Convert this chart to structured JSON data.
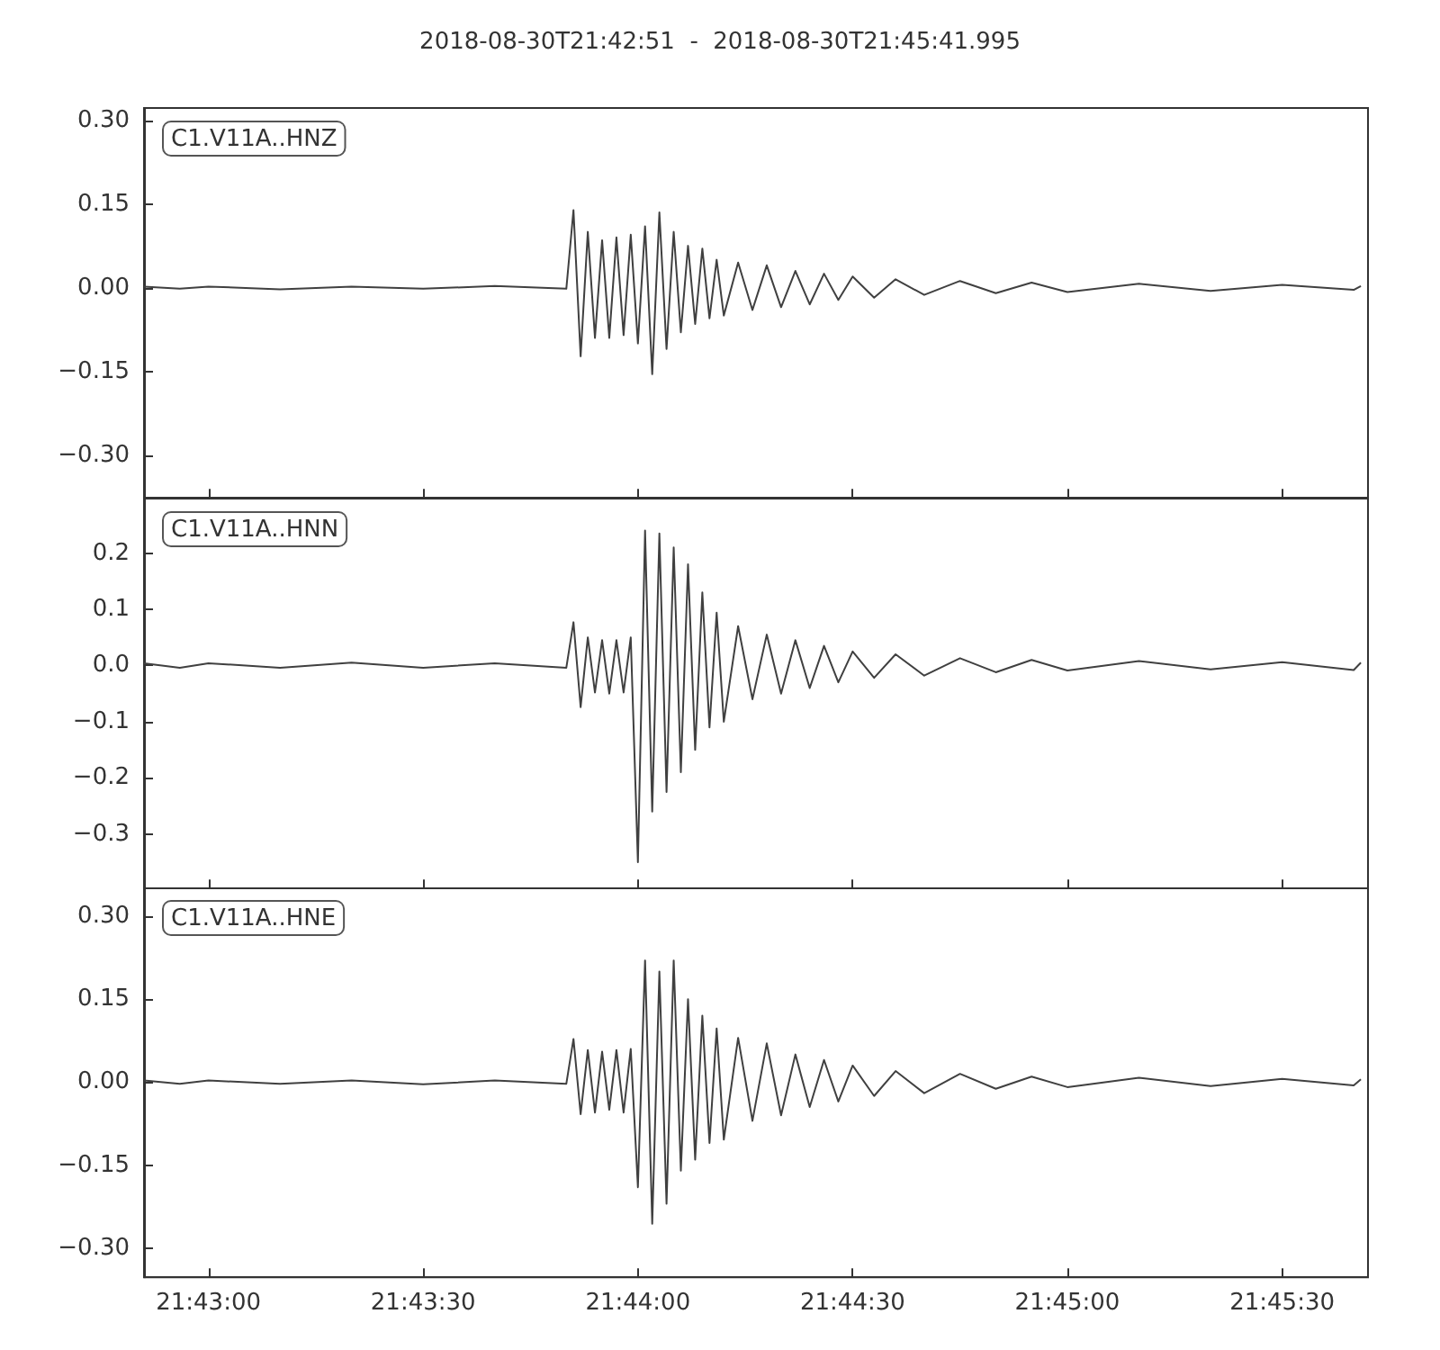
{
  "chart_data": [
    {
      "type": "line",
      "title": "2018-08-30T21:42:51  -  2018-08-30T21:45:41.995",
      "annotations": [
        "C1.V11A..HNZ"
      ],
      "marker": "none",
      "line_style": "solid",
      "grid": false,
      "tick_labels": "y",
      "x": [
        "2018-08-30T21:42:51",
        "2018-08-30T21:42:56",
        "2018-08-30T21:43:00",
        "2018-08-30T21:43:10",
        "2018-08-30T21:43:20",
        "2018-08-30T21:43:30",
        "2018-08-30T21:43:40",
        "2018-08-30T21:43:50",
        "2018-08-30T21:43:51",
        "2018-08-30T21:43:52",
        "2018-08-30T21:43:53",
        "2018-08-30T21:43:54",
        "2018-08-30T21:43:55",
        "2018-08-30T21:43:56",
        "2018-08-30T21:43:57",
        "2018-08-30T21:43:58",
        "2018-08-30T21:43:59",
        "2018-08-30T21:44:00",
        "2018-08-30T21:44:01",
        "2018-08-30T21:44:02",
        "2018-08-30T21:44:03",
        "2018-08-30T21:44:04",
        "2018-08-30T21:44:05",
        "2018-08-30T21:44:06",
        "2018-08-30T21:44:07",
        "2018-08-30T21:44:08",
        "2018-08-30T21:44:09",
        "2018-08-30T21:44:10",
        "2018-08-30T21:44:11",
        "2018-08-30T21:44:12",
        "2018-08-30T21:44:14",
        "2018-08-30T21:44:16",
        "2018-08-30T21:44:18",
        "2018-08-30T21:44:20",
        "2018-08-30T21:44:22",
        "2018-08-30T21:44:24",
        "2018-08-30T21:44:26",
        "2018-08-30T21:44:28",
        "2018-08-30T21:44:30",
        "2018-08-30T21:44:33",
        "2018-08-30T21:44:36",
        "2018-08-30T21:44:40",
        "2018-08-30T21:44:45",
        "2018-08-30T21:44:50",
        "2018-08-30T21:44:55",
        "2018-08-30T21:45:00",
        "2018-08-30T21:45:10",
        "2018-08-30T21:45:20",
        "2018-08-30T21:45:30",
        "2018-08-30T21:45:40",
        "2018-08-30T21:45:41"
      ],
      "series": [
        {
          "color": "#404040",
          "values": [
            0.002,
            -0.002,
            0.002,
            -0.003,
            0.002,
            -0.002,
            0.003,
            -0.002,
            0.139,
            -0.123,
            0.1,
            -0.09,
            0.085,
            -0.09,
            0.09,
            -0.085,
            0.095,
            -0.1,
            0.11,
            -0.155,
            0.135,
            -0.11,
            0.1,
            -0.08,
            0.075,
            -0.065,
            0.07,
            -0.055,
            0.05,
            -0.05,
            0.045,
            -0.04,
            0.04,
            -0.035,
            0.03,
            -0.03,
            0.025,
            -0.022,
            0.02,
            -0.018,
            0.015,
            -0.013,
            0.012,
            -0.01,
            0.009,
            -0.008,
            0.007,
            -0.006,
            0.005,
            -0.004,
            0.003
          ]
        }
      ],
      "xlim": [
        "2018-08-30T21:42:51",
        "2018-08-30T21:45:41.995"
      ],
      "xticks": [
        {
          "value": "2018-08-30T21:43:00",
          "label": null
        },
        {
          "value": "2018-08-30T21:43:30",
          "label": null
        },
        {
          "value": "2018-08-30T21:44:00",
          "label": null
        },
        {
          "value": "2018-08-30T21:44:30",
          "label": null
        },
        {
          "value": "2018-08-30T21:45:00",
          "label": null
        },
        {
          "value": "2018-08-30T21:45:30",
          "label": null
        }
      ],
      "ylim": [
        -0.377,
        0.322
      ],
      "yticks": [
        {
          "value": -0.3,
          "label": "−0.30"
        },
        {
          "value": -0.15,
          "label": "−0.15"
        },
        {
          "value": 0,
          "label": "0.00"
        },
        {
          "value": 0.15,
          "label": "0.15"
        },
        {
          "value": 0.3,
          "label": "0.30"
        }
      ]
    },
    {
      "type": "line",
      "annotations": [
        "C1.V11A..HNN"
      ],
      "marker": "none",
      "line_style": "solid",
      "grid": false,
      "tick_labels": "y",
      "x": [
        "2018-08-30T21:42:51",
        "2018-08-30T21:42:56",
        "2018-08-30T21:43:00",
        "2018-08-30T21:43:10",
        "2018-08-30T21:43:20",
        "2018-08-30T21:43:30",
        "2018-08-30T21:43:40",
        "2018-08-30T21:43:50",
        "2018-08-30T21:43:51",
        "2018-08-30T21:43:52",
        "2018-08-30T21:43:53",
        "2018-08-30T21:43:54",
        "2018-08-30T21:43:55",
        "2018-08-30T21:43:56",
        "2018-08-30T21:43:57",
        "2018-08-30T21:43:58",
        "2018-08-30T21:43:59",
        "2018-08-30T21:44:00",
        "2018-08-30T21:44:01",
        "2018-08-30T21:44:02",
        "2018-08-30T21:44:03",
        "2018-08-30T21:44:04",
        "2018-08-30T21:44:05",
        "2018-08-30T21:44:06",
        "2018-08-30T21:44:07",
        "2018-08-30T21:44:08",
        "2018-08-30T21:44:09",
        "2018-08-30T21:44:10",
        "2018-08-30T21:44:11",
        "2018-08-30T21:44:12",
        "2018-08-30T21:44:14",
        "2018-08-30T21:44:16",
        "2018-08-30T21:44:18",
        "2018-08-30T21:44:20",
        "2018-08-30T21:44:22",
        "2018-08-30T21:44:24",
        "2018-08-30T21:44:26",
        "2018-08-30T21:44:28",
        "2018-08-30T21:44:30",
        "2018-08-30T21:44:33",
        "2018-08-30T21:44:36",
        "2018-08-30T21:44:40",
        "2018-08-30T21:44:45",
        "2018-08-30T21:44:50",
        "2018-08-30T21:44:55",
        "2018-08-30T21:45:00",
        "2018-08-30T21:45:10",
        "2018-08-30T21:45:20",
        "2018-08-30T21:45:30",
        "2018-08-30T21:45:40",
        "2018-08-30T21:45:41"
      ],
      "series": [
        {
          "color": "#404040",
          "values": [
            0.004,
            -0.004,
            0.004,
            -0.004,
            0.005,
            -0.004,
            0.004,
            -0.004,
            0.077,
            -0.074,
            0.05,
            -0.048,
            0.045,
            -0.05,
            0.045,
            -0.048,
            0.05,
            -0.35,
            0.24,
            -0.26,
            0.235,
            -0.225,
            0.21,
            -0.19,
            0.18,
            -0.15,
            0.13,
            -0.11,
            0.094,
            -0.1,
            0.07,
            -0.06,
            0.055,
            -0.05,
            0.045,
            -0.04,
            0.035,
            -0.03,
            0.025,
            -0.022,
            0.02,
            -0.018,
            0.013,
            -0.012,
            0.01,
            -0.009,
            0.008,
            -0.007,
            0.006,
            -0.008,
            0.005
          ]
        }
      ],
      "xlim": [
        "2018-08-30T21:42:51",
        "2018-08-30T21:45:41.995"
      ],
      "xticks": [
        {
          "value": "2018-08-30T21:43:00",
          "label": null
        },
        {
          "value": "2018-08-30T21:43:30",
          "label": null
        },
        {
          "value": "2018-08-30T21:44:00",
          "label": null
        },
        {
          "value": "2018-08-30T21:44:30",
          "label": null
        },
        {
          "value": "2018-08-30T21:45:00",
          "label": null
        },
        {
          "value": "2018-08-30T21:45:30",
          "label": null
        }
      ],
      "ylim": [
        -0.397,
        0.297
      ],
      "yticks": [
        {
          "value": -0.3,
          "label": "−0.3"
        },
        {
          "value": -0.2,
          "label": "−0.2"
        },
        {
          "value": -0.1,
          "label": "−0.1"
        },
        {
          "value": 0,
          "label": "0.0"
        },
        {
          "value": 0.1,
          "label": "0.1"
        },
        {
          "value": 0.2,
          "label": "0.2"
        }
      ]
    },
    {
      "type": "line",
      "annotations": [
        "C1.V11A..HNE"
      ],
      "marker": "none",
      "line_style": "solid",
      "grid": false,
      "x": [
        "2018-08-30T21:42:51",
        "2018-08-30T21:42:56",
        "2018-08-30T21:43:00",
        "2018-08-30T21:43:10",
        "2018-08-30T21:43:20",
        "2018-08-30T21:43:30",
        "2018-08-30T21:43:40",
        "2018-08-30T21:43:50",
        "2018-08-30T21:43:51",
        "2018-08-30T21:43:52",
        "2018-08-30T21:43:53",
        "2018-08-30T21:43:54",
        "2018-08-30T21:43:55",
        "2018-08-30T21:43:56",
        "2018-08-30T21:43:57",
        "2018-08-30T21:43:58",
        "2018-08-30T21:43:59",
        "2018-08-30T21:44:00",
        "2018-08-30T21:44:01",
        "2018-08-30T21:44:02",
        "2018-08-30T21:44:03",
        "2018-08-30T21:44:04",
        "2018-08-30T21:44:05",
        "2018-08-30T21:44:06",
        "2018-08-30T21:44:07",
        "2018-08-30T21:44:08",
        "2018-08-30T21:44:09",
        "2018-08-30T21:44:10",
        "2018-08-30T21:44:11",
        "2018-08-30T21:44:12",
        "2018-08-30T21:44:14",
        "2018-08-30T21:44:16",
        "2018-08-30T21:44:18",
        "2018-08-30T21:44:20",
        "2018-08-30T21:44:22",
        "2018-08-30T21:44:24",
        "2018-08-30T21:44:26",
        "2018-08-30T21:44:28",
        "2018-08-30T21:44:30",
        "2018-08-30T21:44:33",
        "2018-08-30T21:44:36",
        "2018-08-30T21:44:40",
        "2018-08-30T21:44:45",
        "2018-08-30T21:44:50",
        "2018-08-30T21:44:55",
        "2018-08-30T21:45:00",
        "2018-08-30T21:45:10",
        "2018-08-30T21:45:20",
        "2018-08-30T21:45:30",
        "2018-08-30T21:45:40",
        "2018-08-30T21:45:41"
      ],
      "series": [
        {
          "color": "#404040",
          "values": [
            0.003,
            -0.003,
            0.003,
            -0.003,
            0.003,
            -0.004,
            0.003,
            -0.003,
            0.078,
            -0.058,
            0.058,
            -0.055,
            0.055,
            -0.05,
            0.058,
            -0.055,
            0.06,
            -0.19,
            0.22,
            -0.256,
            0.2,
            -0.22,
            0.22,
            -0.16,
            0.15,
            -0.14,
            0.12,
            -0.11,
            0.097,
            -0.104,
            0.08,
            -0.07,
            0.07,
            -0.06,
            0.05,
            -0.045,
            0.04,
            -0.035,
            0.03,
            -0.025,
            0.02,
            -0.02,
            0.015,
            -0.012,
            0.01,
            -0.009,
            0.008,
            -0.007,
            0.006,
            -0.006,
            0.005
          ]
        }
      ],
      "xlim": [
        "2018-08-30T21:42:51",
        "2018-08-30T21:45:41.995"
      ],
      "xticks": [
        {
          "value": "2018-08-30T21:43:00",
          "label": "21:43:00"
        },
        {
          "value": "2018-08-30T21:43:30",
          "label": "21:43:30"
        },
        {
          "value": "2018-08-30T21:44:00",
          "label": "21:44:00"
        },
        {
          "value": "2018-08-30T21:44:30",
          "label": "21:44:30"
        },
        {
          "value": "2018-08-30T21:45:00",
          "label": "21:45:00"
        },
        {
          "value": "2018-08-30T21:45:30",
          "label": "21:45:30"
        }
      ],
      "ylim": [
        -0.353,
        0.352
      ],
      "yticks": [
        {
          "value": -0.3,
          "label": "−0.30"
        },
        {
          "value": -0.15,
          "label": "−0.15"
        },
        {
          "value": 0,
          "label": "0.00"
        },
        {
          "value": 0.15,
          "label": "0.15"
        },
        {
          "value": 0.3,
          "label": "0.30"
        }
      ]
    }
  ]
}
